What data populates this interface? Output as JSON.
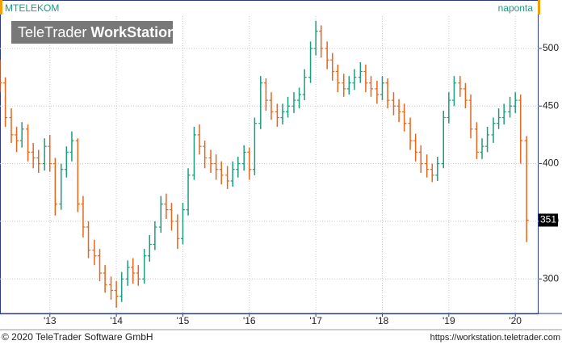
{
  "chart_data": {
    "type": "ohlc",
    "symbol": "MTELEKOM",
    "interval": "naponta",
    "watermark": {
      "brand": "TeleTrader",
      "product": "WorkStation"
    },
    "copyright": "© 2020 TeleTrader Software GmbH",
    "url": "https://workstation.teletrader.com",
    "up_color": "#1c9c7e",
    "down_color": "#e8651c",
    "grid": true,
    "xlim": [
      2012.25,
      2020.35
    ],
    "xticks": [
      {
        "value": 2013,
        "label": "'13"
      },
      {
        "value": 2014,
        "label": "'14"
      },
      {
        "value": 2015,
        "label": "'15"
      },
      {
        "value": 2016,
        "label": "'16"
      },
      {
        "value": 2017,
        "label": "'17"
      },
      {
        "value": 2018,
        "label": "'18"
      },
      {
        "value": 2019,
        "label": "'19"
      },
      {
        "value": 2020,
        "label": "'20"
      }
    ],
    "ylim": [
      270,
      528
    ],
    "yticks": [
      300,
      350,
      400,
      450,
      500
    ],
    "x": [
      2012.25,
      2012.33,
      2012.42,
      2012.5,
      2012.58,
      2012.67,
      2012.75,
      2012.83,
      2012.92,
      2013.0,
      2013.08,
      2013.17,
      2013.25,
      2013.33,
      2013.42,
      2013.5,
      2013.58,
      2013.67,
      2013.75,
      2013.83,
      2013.92,
      2014.0,
      2014.08,
      2014.17,
      2014.25,
      2014.33,
      2014.42,
      2014.5,
      2014.58,
      2014.67,
      2014.75,
      2014.83,
      2014.92,
      2015.0,
      2015.08,
      2015.17,
      2015.25,
      2015.33,
      2015.42,
      2015.5,
      2015.58,
      2015.67,
      2015.75,
      2015.83,
      2015.92,
      2016.0,
      2016.08,
      2016.17,
      2016.25,
      2016.33,
      2016.42,
      2016.5,
      2016.58,
      2016.67,
      2016.75,
      2016.83,
      2016.92,
      2017.0,
      2017.08,
      2017.17,
      2017.25,
      2017.33,
      2017.42,
      2017.5,
      2017.58,
      2017.67,
      2017.75,
      2017.83,
      2017.92,
      2018.0,
      2018.08,
      2018.17,
      2018.25,
      2018.33,
      2018.42,
      2018.5,
      2018.58,
      2018.67,
      2018.75,
      2018.83,
      2018.92,
      2019.0,
      2019.08,
      2019.17,
      2019.25,
      2019.33,
      2019.42,
      2019.5,
      2019.58,
      2019.67,
      2019.75,
      2019.83,
      2019.92,
      2020.0,
      2020.08,
      2020.17
    ],
    "open": [
      480,
      470,
      440,
      425,
      420,
      430,
      410,
      405,
      400,
      415,
      400,
      365,
      395,
      410,
      420,
      365,
      345,
      325,
      320,
      305,
      295,
      290,
      285,
      300,
      310,
      305,
      300,
      320,
      330,
      345,
      365,
      360,
      350,
      335,
      360,
      390,
      425,
      415,
      405,
      400,
      395,
      390,
      385,
      395,
      400,
      410,
      395,
      435,
      470,
      455,
      445,
      440,
      445,
      450,
      455,
      460,
      475,
      500,
      515,
      500,
      490,
      480,
      470,
      465,
      470,
      475,
      480,
      470,
      465,
      460,
      470,
      455,
      450,
      445,
      435,
      420,
      410,
      400,
      395,
      390,
      400,
      440,
      455,
      470,
      465,
      455,
      430,
      410,
      415,
      425,
      435,
      440,
      445,
      450,
      455,
      420
    ],
    "high": [
      490,
      475,
      448,
      432,
      436,
      434,
      418,
      412,
      422,
      425,
      405,
      400,
      415,
      428,
      422,
      372,
      350,
      334,
      326,
      312,
      302,
      298,
      306,
      316,
      318,
      312,
      326,
      338,
      350,
      372,
      374,
      366,
      356,
      366,
      396,
      432,
      434,
      420,
      412,
      408,
      402,
      398,
      402,
      406,
      416,
      414,
      440,
      476,
      474,
      462,
      452,
      452,
      458,
      462,
      466,
      482,
      506,
      524,
      520,
      506,
      496,
      486,
      478,
      476,
      482,
      488,
      486,
      476,
      472,
      476,
      474,
      462,
      456,
      452,
      440,
      426,
      416,
      408,
      400,
      406,
      446,
      462,
      476,
      476,
      470,
      460,
      436,
      422,
      432,
      440,
      448,
      452,
      458,
      462,
      460,
      424
    ],
    "low": [
      462,
      432,
      418,
      410,
      414,
      402,
      396,
      392,
      394,
      393,
      355,
      360,
      388,
      402,
      358,
      336,
      318,
      312,
      298,
      288,
      282,
      275,
      280,
      294,
      296,
      294,
      296,
      315,
      325,
      340,
      352,
      342,
      326,
      330,
      355,
      386,
      408,
      396,
      392,
      386,
      382,
      378,
      380,
      388,
      394,
      386,
      390,
      430,
      446,
      438,
      432,
      434,
      440,
      444,
      448,
      455,
      470,
      494,
      492,
      482,
      472,
      462,
      458,
      460,
      464,
      470,
      462,
      458,
      452,
      455,
      448,
      442,
      436,
      428,
      412,
      402,
      392,
      388,
      384,
      385,
      396,
      435,
      450,
      458,
      448,
      422,
      404,
      404,
      410,
      418,
      430,
      434,
      440,
      444,
      400,
      332
    ],
    "close": [
      470,
      440,
      425,
      420,
      430,
      410,
      405,
      400,
      415,
      400,
      365,
      395,
      410,
      420,
      365,
      345,
      325,
      320,
      305,
      295,
      290,
      285,
      300,
      310,
      305,
      300,
      320,
      330,
      345,
      365,
      360,
      350,
      335,
      360,
      390,
      425,
      415,
      405,
      400,
      395,
      390,
      385,
      395,
      400,
      410,
      395,
      435,
      470,
      455,
      445,
      440,
      445,
      450,
      455,
      460,
      475,
      500,
      515,
      500,
      490,
      480,
      470,
      465,
      470,
      475,
      480,
      470,
      465,
      460,
      470,
      455,
      450,
      445,
      435,
      420,
      410,
      400,
      395,
      390,
      400,
      440,
      455,
      470,
      465,
      455,
      430,
      410,
      415,
      425,
      435,
      440,
      445,
      450,
      455,
      420,
      351
    ]
  }
}
